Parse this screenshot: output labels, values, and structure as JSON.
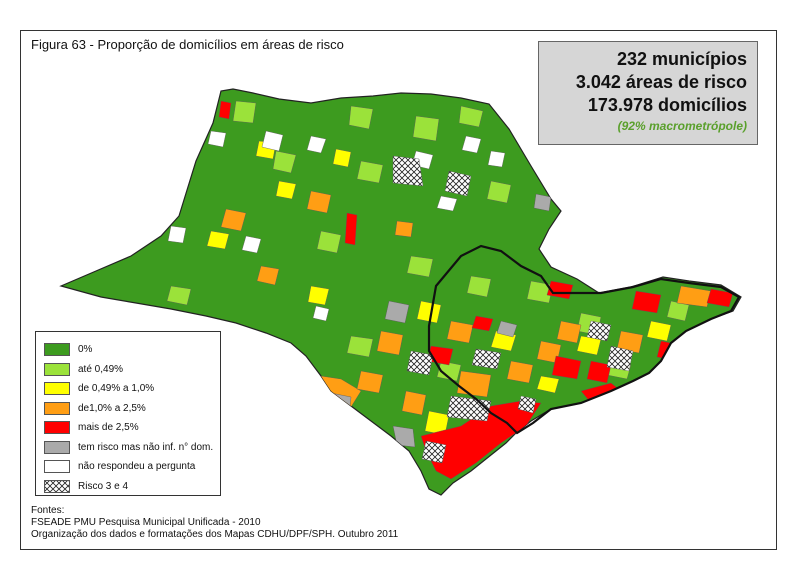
{
  "title": "Figura 63 - Proporção de domicílios em áreas de risco",
  "summary": {
    "line1": "232 municípios",
    "line2": "3.042 áreas de risco",
    "line3": "173.978 domicílios",
    "note": "(92% macrometrópole)"
  },
  "legend": [
    {
      "label": "0%",
      "color": "#3d9b1f"
    },
    {
      "label": "até 0,49%",
      "color": "#9be23a"
    },
    {
      "label": "de 0,49% a 1,0%",
      "color": "#ffff00"
    },
    {
      "label": "de1,0% a 2,5%",
      "color": "#ff9e14"
    },
    {
      "label": "mais de 2,5%",
      "color": "#ff0000"
    },
    {
      "label": "tem risco mas não inf. n° dom.",
      "color": "#aaaaaa"
    },
    {
      "label": "não respondeu a pergunta",
      "color": "#ffffff"
    },
    {
      "label": "Risco 3 e 4",
      "color": "hatch"
    }
  ],
  "sources": {
    "line1": "Fontes:",
    "line2": "FSEADE PMU Pesquisa Municipal Unificada - 2010",
    "line3": "Organização dos dados e formatações dos Mapas CDHU/DPF/SPH. Outubro 2011"
  },
  "colors": {
    "green": "#3d9b1f",
    "light_green": "#9be23a",
    "yellow": "#ffff00",
    "orange": "#ff9e14",
    "red": "#ff0000",
    "gray": "#aaaaaa",
    "white": "#ffffff",
    "outline": "#111111"
  }
}
